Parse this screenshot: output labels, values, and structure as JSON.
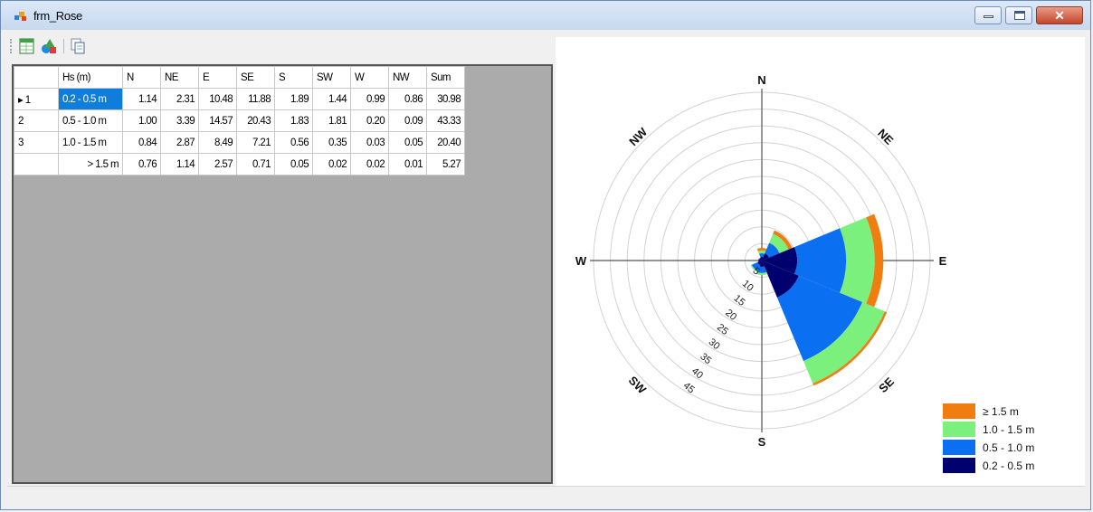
{
  "window": {
    "title": "frm_Rose"
  },
  "toolbar": {
    "buttons": [
      "export-excel",
      "chart-shapes",
      "copy"
    ]
  },
  "table": {
    "headers": [
      "Hs (m)",
      "N",
      "NE",
      "E",
      "SE",
      "S",
      "SW",
      "W",
      "NW",
      "Sum"
    ],
    "rows": [
      {
        "label": "1",
        "current": true,
        "cells": [
          "0.2 - 0.5 m",
          "1.14",
          "2.31",
          "10.48",
          "11.88",
          "1.89",
          "1.44",
          "0.99",
          "0.86",
          "30.98"
        ]
      },
      {
        "label": "2",
        "current": false,
        "cells": [
          "0.5 - 1.0 m",
          "1.00",
          "3.39",
          "14.57",
          "20.43",
          "1.83",
          "1.81",
          "0.20",
          "0.09",
          "43.33"
        ]
      },
      {
        "label": "3",
        "current": false,
        "cells": [
          "1.0 - 1.5 m",
          "0.84",
          "2.87",
          "8.49",
          "7.21",
          "0.56",
          "0.35",
          "0.03",
          "0.05",
          "20.40"
        ]
      },
      {
        "label": "",
        "current": false,
        "cells": [
          "> 1.5 m",
          "0.76",
          "1.14",
          "2.57",
          "0.71",
          "0.05",
          "0.02",
          "0.02",
          "0.01",
          "5.27"
        ]
      }
    ]
  },
  "chart_data": {
    "type": "rose",
    "directions": [
      "N",
      "NE",
      "E",
      "SE",
      "S",
      "SW",
      "W",
      "NW"
    ],
    "radial_ticks": [
      "5",
      "10",
      "15",
      "20",
      "25",
      "30",
      "35",
      "40",
      "45"
    ],
    "rmax": 50,
    "series": [
      {
        "name": "0.2 - 0.5 m",
        "color": "#00006e",
        "values": [
          1.14,
          2.31,
          10.48,
          11.88,
          1.89,
          1.44,
          0.99,
          0.86
        ]
      },
      {
        "name": "0.5 - 1.0 m",
        "color": "#0a6ff0",
        "values": [
          1.0,
          3.39,
          14.57,
          20.43,
          1.83,
          1.81,
          0.2,
          0.09
        ]
      },
      {
        "name": "1.0 - 1.5 m",
        "color": "#7cf07c",
        "values": [
          0.84,
          2.87,
          8.49,
          7.21,
          0.56,
          0.35,
          0.03,
          0.05
        ]
      },
      {
        "name": "≥ 1.5 m",
        "color": "#f07d10",
        "values": [
          0.76,
          1.14,
          2.57,
          0.71,
          0.05,
          0.02,
          0.02,
          0.01
        ]
      }
    ],
    "legend": {
      "placement": "bottom-right",
      "items": [
        {
          "label": "≥ 1.5 m",
          "color": "#f07d10"
        },
        {
          "label": "1.0 - 1.5 m",
          "color": "#7cf07c"
        },
        {
          "label": "0.5 - 1.0 m",
          "color": "#0a6ff0"
        },
        {
          "label": "0.2 - 0.5 m",
          "color": "#00006e"
        }
      ]
    }
  }
}
